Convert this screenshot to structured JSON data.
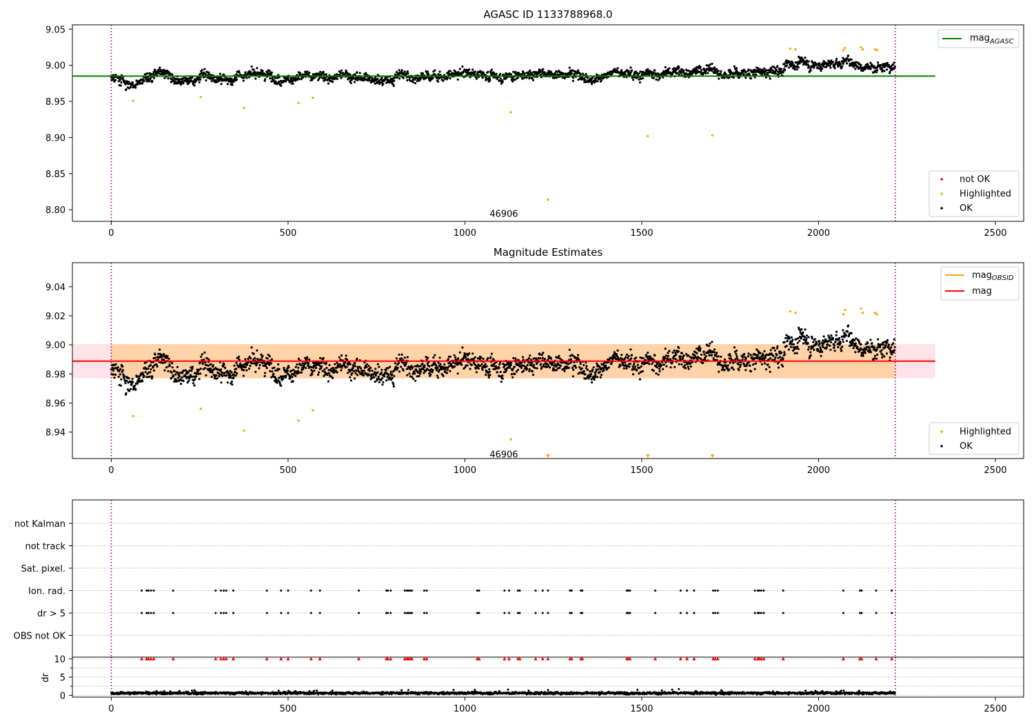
{
  "chart_data": [
    {
      "type": "scatter",
      "title": "AGASC ID 1133788968.0",
      "xlim": [
        -110,
        2580
      ],
      "ylim": [
        8.784,
        9.056
      ],
      "x_ticks": [
        0,
        500,
        1000,
        1500,
        2000,
        2500
      ],
      "y_ticks": [
        8.8,
        8.85,
        8.9,
        8.95,
        9.0,
        9.05
      ],
      "y_tick_labels": [
        "8.80",
        "8.85",
        "8.90",
        "8.95",
        "9.00",
        "9.05"
      ],
      "grid": false,
      "legend_upper": {
        "placement": "upper-right",
        "label_main": "mag",
        "label_sub": "AGASC",
        "color": "#008000"
      },
      "legend_lower": {
        "placement": "lower-right",
        "entries": [
          {
            "label": "not OK",
            "color": "#ff0000"
          },
          {
            "label": "Highlighted",
            "color": "#ffa500"
          },
          {
            "label": "OK",
            "color": "#000000"
          }
        ]
      },
      "hline": {
        "y": 8.985,
        "x_range": [
          -110,
          2330
        ],
        "color": "#008000"
      },
      "vlines": {
        "x": [
          0,
          2217
        ],
        "color": "#800080",
        "style": "dotted"
      },
      "annotation": {
        "text": "46906",
        "x": 1110,
        "y": 8.795
      },
      "ok_series": {
        "n": 2217,
        "x_range": [
          0,
          2217
        ],
        "segments": [
          {
            "x": [
              0,
              40
            ],
            "y": [
              8.985,
              8.972
            ]
          },
          {
            "x": [
              40,
              100
            ],
            "y": [
              8.972,
              8.985
            ]
          },
          {
            "x": [
              100,
              350
            ],
            "y": [
              8.985,
              8.983
            ]
          },
          {
            "x": [
              350,
              600
            ],
            "y": [
              8.988,
              8.988
            ]
          },
          {
            "x": [
              600,
              800
            ],
            "y": [
              8.988,
              8.98
            ]
          },
          {
            "x": [
              800,
              1200
            ],
            "y": [
              8.99,
              8.985
            ]
          },
          {
            "x": [
              1200,
              1900
            ],
            "y": [
              8.988,
              8.992
            ]
          },
          {
            "x": [
              1900,
              2217
            ],
            "y": [
              9.002,
              9.003
            ]
          }
        ],
        "spread": 0.007
      },
      "highlighted_points": {
        "x": [
          62,
          253,
          375,
          530,
          570,
          1130,
          1235,
          1517,
          1700,
          1920,
          1935,
          2070,
          2075,
          2120,
          2125,
          2160,
          2165
        ],
        "y": [
          8.951,
          8.956,
          8.941,
          8.948,
          8.955,
          8.935,
          8.814,
          8.902,
          8.903,
          9.023,
          9.022,
          9.021,
          9.024,
          9.025,
          9.022,
          9.022,
          9.021
        ]
      }
    },
    {
      "type": "scatter",
      "title": "Magnitude Estimates",
      "xlim": [
        -110,
        2580
      ],
      "ylim": [
        8.9218,
        9.0565
      ],
      "x_ticks": [
        0,
        500,
        1000,
        1500,
        2000,
        2500
      ],
      "y_ticks": [
        8.94,
        8.96,
        8.98,
        9.0,
        9.02,
        9.04
      ],
      "y_tick_labels": [
        "8.94",
        "8.96",
        "8.98",
        "9.00",
        "9.02",
        "9.04"
      ],
      "grid": false,
      "legend_upper": {
        "placement": "upper-right",
        "entries": [
          {
            "label_main": "mag",
            "label_sub": "OBSID",
            "color": "#ffa500"
          },
          {
            "label_main": "mag",
            "label_sub": "",
            "color": "#ff0000"
          }
        ]
      },
      "legend_lower": {
        "placement": "lower-right",
        "entries": [
          {
            "label": "Highlighted",
            "color": "#ffa500"
          },
          {
            "label": "OK",
            "color": "#000000"
          }
        ]
      },
      "mag_line": {
        "y": 8.9888,
        "x_range": [
          -110,
          2330
        ],
        "color": "#ff0000"
      },
      "bands": [
        {
          "y": [
            8.977,
            9.0005
          ],
          "x_range": [
            -110,
            2330
          ],
          "color": "#ffc0cb",
          "alpha": 0.45
        },
        {
          "y": [
            8.977,
            9.0005
          ],
          "x_range": [
            0,
            2217
          ],
          "color": "#ffa500",
          "alpha": 0.28
        }
      ],
      "vlines": {
        "x": [
          0,
          2217
        ],
        "color": "#800080",
        "style": "dotted"
      },
      "annotation": {
        "text": "46906",
        "x": 1110,
        "y": 8.925
      },
      "ok_series_ref": "same as AGASC panel",
      "highlighted_points": {
        "x": [
          62,
          253,
          375,
          530,
          570,
          1130,
          1920,
          1935,
          2070,
          2075,
          2120,
          2125,
          2160,
          2165
        ],
        "y": [
          8.951,
          8.956,
          8.941,
          8.948,
          8.955,
          8.935,
          9.023,
          9.022,
          9.021,
          9.024,
          9.025,
          9.022,
          9.022,
          9.021
        ]
      },
      "below_range_markers": {
        "x": [
          1235,
          1517,
          1700
        ],
        "color": "#ffa500"
      }
    },
    {
      "type": "scatter",
      "title": "",
      "xlim": [
        -110,
        2580
      ],
      "categories": [
        "not Kalman",
        "not track",
        "Sat. pixel.",
        "Ion. rad.",
        "dr > 5",
        "OBS not OK"
      ],
      "grid": "dotted horizontal",
      "vlines": {
        "x": [
          0,
          2217
        ],
        "color": "#800080",
        "style": "dotted"
      },
      "flags": {
        "Ion. rad.": [
          86,
          100,
          105,
          112,
          120,
          175,
          295,
          310,
          318,
          325,
          345,
          440,
          480,
          500,
          565,
          590,
          700,
          778,
          782,
          790,
          830,
          836,
          840,
          845,
          850,
          885,
          892,
          1035,
          1040,
          1112,
          1125,
          1150,
          1155,
          1200,
          1220,
          1235,
          1297,
          1302,
          1328,
          1332,
          1458,
          1462,
          1467,
          1538,
          1610,
          1628,
          1648,
          1702,
          1708,
          1715,
          1820,
          1828,
          1832,
          1838,
          1845,
          1900,
          2070,
          2117,
          2122,
          2163,
          2207
        ],
        "dr > 5": [
          86,
          100,
          105,
          112,
          120,
          175,
          295,
          310,
          318,
          325,
          345,
          440,
          480,
          500,
          565,
          590,
          700,
          778,
          782,
          790,
          830,
          836,
          840,
          845,
          850,
          885,
          892,
          1035,
          1040,
          1112,
          1125,
          1150,
          1155,
          1200,
          1220,
          1235,
          1297,
          1302,
          1328,
          1332,
          1458,
          1462,
          1467,
          1538,
          1610,
          1628,
          1648,
          1702,
          1708,
          1715,
          1820,
          1828,
          1832,
          1838,
          1845,
          1900,
          2070,
          2117,
          2122,
          2163,
          2207
        ]
      }
    },
    {
      "type": "scatter",
      "title": "",
      "ylabel": "dr",
      "xlim": [
        -110,
        2580
      ],
      "ylim": [
        -0.5,
        10.5
      ],
      "x_ticks": [
        0,
        500,
        1000,
        1500,
        2000,
        2500
      ],
      "y_ticks": [
        0,
        5,
        10
      ],
      "y_tick_labels": [
        "0",
        "5",
        "10"
      ],
      "y_minor_ticks": [
        2.5,
        7.5
      ],
      "grid": "dotted horizontal",
      "vlines": {
        "x": [
          0,
          2217
        ],
        "color": "#800080",
        "style": "dotted"
      },
      "dr_series": {
        "n": 2217,
        "x_range": [
          0,
          2217
        ],
        "base": 0.6,
        "spread": 0.45
      },
      "clipped_markers": {
        "y": 10,
        "color": "#ff0000",
        "same_x_as": "Ion. rad."
      }
    }
  ]
}
